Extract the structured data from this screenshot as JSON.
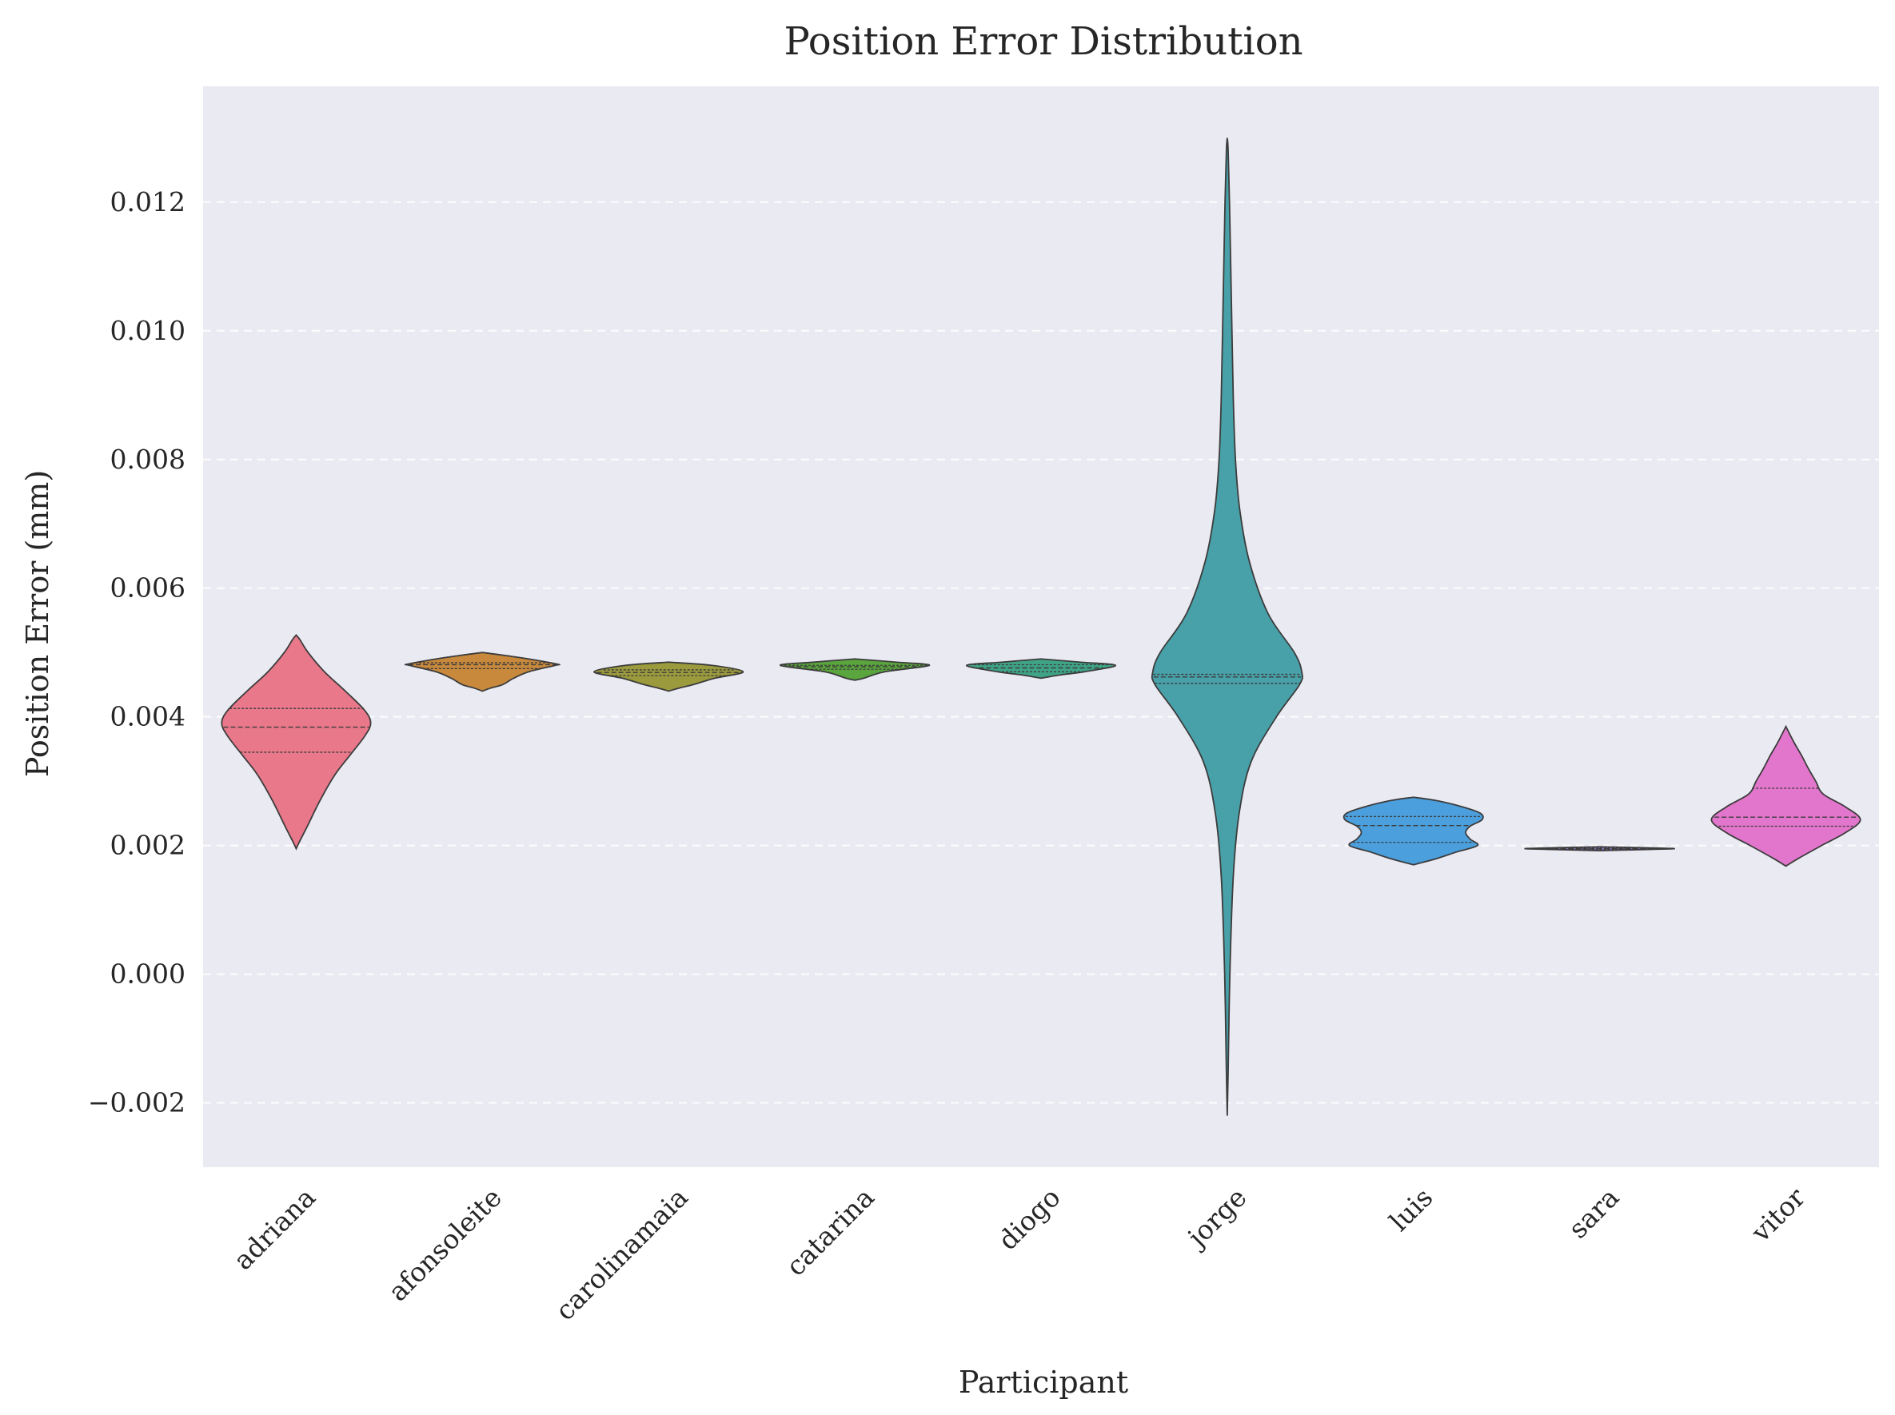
{
  "chart_data": {
    "type": "violin",
    "title": "Position Error Distribution",
    "xlabel": "Participant",
    "ylabel": "Position Error (mm)",
    "ylim": [
      -0.003,
      0.0138
    ],
    "yticks": [
      -0.002,
      0.0,
      0.002,
      0.004,
      0.006,
      0.008,
      0.01,
      0.012
    ],
    "ytick_labels": [
      "−0.002",
      "0.000",
      "0.002",
      "0.004",
      "0.006",
      "0.008",
      "0.010",
      "0.012"
    ],
    "grid": "y-dashed",
    "categories": [
      "adriana",
      "afonsoleite",
      "carolinamaia",
      "catarina",
      "diogo",
      "jorge",
      "luis",
      "sara",
      "vitor"
    ],
    "series": [
      {
        "category": "adriana",
        "color": "#e8788a",
        "min": 0.00195,
        "max": 0.00527,
        "q1": 0.00345,
        "median": 0.00384,
        "q3": 0.00413,
        "profile": [
          [
            0.00195,
            0.0
          ],
          [
            0.00205,
            0.04
          ],
          [
            0.0023,
            0.15
          ],
          [
            0.0027,
            0.32
          ],
          [
            0.0031,
            0.52
          ],
          [
            0.0034,
            0.72
          ],
          [
            0.0037,
            0.92
          ],
          [
            0.0039,
            1.0
          ],
          [
            0.0041,
            0.92
          ],
          [
            0.0044,
            0.66
          ],
          [
            0.0047,
            0.38
          ],
          [
            0.005,
            0.16
          ],
          [
            0.0052,
            0.05
          ],
          [
            0.00527,
            0.0
          ]
        ]
      },
      {
        "category": "afonsoleite",
        "color": "#c8893d",
        "min": 0.0044,
        "max": 0.005,
        "q1": 0.00475,
        "median": 0.00481,
        "q3": 0.00484,
        "profile": [
          [
            0.0044,
            0.0
          ],
          [
            0.00445,
            0.12
          ],
          [
            0.0045,
            0.27
          ],
          [
            0.0046,
            0.42
          ],
          [
            0.0047,
            0.62
          ],
          [
            0.0048,
            0.98
          ],
          [
            0.00482,
            1.0
          ],
          [
            0.0049,
            0.62
          ],
          [
            0.00495,
            0.33
          ],
          [
            0.005,
            0.0
          ]
        ]
      },
      {
        "category": "carolinamaia",
        "color": "#9b9a3d",
        "min": 0.0044,
        "max": 0.00485,
        "q1": 0.00464,
        "median": 0.00469,
        "q3": 0.00473,
        "profile": [
          [
            0.0044,
            0.0
          ],
          [
            0.00445,
            0.15
          ],
          [
            0.0045,
            0.33
          ],
          [
            0.0046,
            0.62
          ],
          [
            0.0047,
            1.0
          ],
          [
            0.0048,
            0.58
          ],
          [
            0.00485,
            0.0
          ]
        ]
      },
      {
        "category": "catarina",
        "color": "#5aa53d",
        "min": 0.00457,
        "max": 0.0049,
        "q1": 0.00474,
        "median": 0.00478,
        "q3": 0.0048,
        "profile": [
          [
            0.00457,
            0.0
          ],
          [
            0.0046,
            0.12
          ],
          [
            0.0047,
            0.4
          ],
          [
            0.0048,
            1.0
          ],
          [
            0.00485,
            0.55
          ],
          [
            0.0049,
            0.0
          ]
        ]
      },
      {
        "category": "diogo",
        "color": "#3fa486",
        "min": 0.0046,
        "max": 0.0049,
        "q1": 0.0047,
        "median": 0.00476,
        "q3": 0.00481,
        "profile": [
          [
            0.0046,
            0.0
          ],
          [
            0.00465,
            0.25
          ],
          [
            0.0047,
            0.58
          ],
          [
            0.0048,
            1.0
          ],
          [
            0.00485,
            0.52
          ],
          [
            0.0049,
            0.0
          ]
        ]
      },
      {
        "category": "jorge",
        "color": "#48a0a8",
        "min": -0.0022,
        "max": 0.013,
        "q1": 0.00452,
        "median": 0.00462,
        "q3": 0.00466,
        "profile": [
          [
            -0.0022,
            0.0
          ],
          [
            -0.0015,
            0.012
          ],
          [
            0.0,
            0.035
          ],
          [
            0.0015,
            0.08
          ],
          [
            0.0025,
            0.16
          ],
          [
            0.0033,
            0.32
          ],
          [
            0.004,
            0.66
          ],
          [
            0.0045,
            0.97
          ],
          [
            0.0047,
            1.0
          ],
          [
            0.005,
            0.9
          ],
          [
            0.0056,
            0.55
          ],
          [
            0.0064,
            0.3
          ],
          [
            0.0072,
            0.17
          ],
          [
            0.008,
            0.11
          ],
          [
            0.009,
            0.08
          ],
          [
            0.0105,
            0.055
          ],
          [
            0.012,
            0.03
          ],
          [
            0.0128,
            0.012
          ],
          [
            0.013,
            0.0
          ]
        ]
      },
      {
        "category": "luis",
        "color": "#4a9fdc",
        "min": 0.0017,
        "max": 0.00275,
        "q1": 0.00205,
        "median": 0.00231,
        "q3": 0.00245,
        "profile": [
          [
            0.0017,
            0.0
          ],
          [
            0.0018,
            0.32
          ],
          [
            0.0019,
            0.58
          ],
          [
            0.002,
            0.86
          ],
          [
            0.0021,
            0.76
          ],
          [
            0.0022,
            0.7
          ],
          [
            0.0023,
            0.76
          ],
          [
            0.0024,
            0.92
          ],
          [
            0.0025,
            0.9
          ],
          [
            0.0026,
            0.66
          ],
          [
            0.0027,
            0.3
          ],
          [
            0.00275,
            0.0
          ]
        ]
      },
      {
        "category": "sara",
        "color": "#9a78c8",
        "min": 0.00192,
        "max": 0.00198,
        "q1": 0.00194,
        "median": 0.00195,
        "q3": 0.00196,
        "profile": [
          [
            0.00192,
            0.0
          ],
          [
            0.00194,
            0.7
          ],
          [
            0.00195,
            1.0
          ],
          [
            0.00196,
            0.8
          ],
          [
            0.00198,
            0.0
          ]
        ]
      },
      {
        "category": "vitor",
        "color": "#e276cc",
        "min": 0.00168,
        "max": 0.00385,
        "q1": 0.0023,
        "median": 0.00244,
        "q3": 0.00289,
        "profile": [
          [
            0.00168,
            0.0
          ],
          [
            0.0018,
            0.17
          ],
          [
            0.002,
            0.48
          ],
          [
            0.0022,
            0.8
          ],
          [
            0.0024,
            1.0
          ],
          [
            0.0026,
            0.8
          ],
          [
            0.0028,
            0.5
          ],
          [
            0.003,
            0.4
          ],
          [
            0.0032,
            0.3
          ],
          [
            0.0034,
            0.21
          ],
          [
            0.0036,
            0.11
          ],
          [
            0.00385,
            0.0
          ]
        ]
      }
    ]
  }
}
